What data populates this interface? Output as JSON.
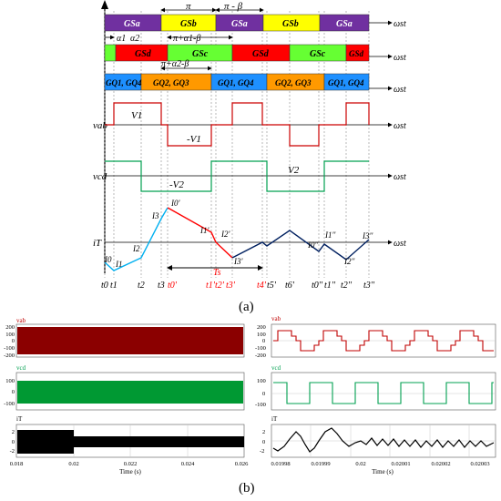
{
  "figure": {
    "panel_a_label": "(a)",
    "panel_b_label": "(b)",
    "colors": {
      "purple": "#7030a0",
      "yellow": "#ffff00",
      "red": "#ff0000",
      "green": "#66ff33",
      "blue": "#1e90ff",
      "orange": "#ff9900",
      "vab_trace": "#c00000",
      "vcd_trace": "#00a050",
      "iT_blue": "#00b0f0",
      "iT_red": "#ff0000",
      "iT_navy": "#002060"
    }
  },
  "timing_diagram": {
    "axis_label": "ωst",
    "row1": [
      {
        "label": "GSa",
        "color": "#7030a0"
      },
      {
        "label": "GSb",
        "color": "#ffff00"
      },
      {
        "label": "GSa",
        "color": "#7030a0"
      },
      {
        "label": "GSb",
        "color": "#ffff00"
      },
      {
        "label": "GSa",
        "color": "#7030a0"
      }
    ],
    "row2": [
      {
        "label": "GSd",
        "color": "#ff0000"
      },
      {
        "label": "GSc",
        "color": "#66ff33"
      },
      {
        "label": "GSd",
        "color": "#ff0000"
      },
      {
        "label": "GSc",
        "color": "#66ff33"
      },
      {
        "label": "GSd",
        "color": "#ff0000"
      }
    ],
    "row3": [
      {
        "label": "GQ1, GQ4",
        "color": "#1e90ff"
      },
      {
        "label": "GQ2, GQ3",
        "color": "#ff9900"
      },
      {
        "label": "GQ1, GQ4",
        "color": "#1e90ff"
      },
      {
        "label": "GQ2, GQ3",
        "color": "#ff9900"
      },
      {
        "label": "GQ1, GQ4",
        "color": "#1e90ff"
      }
    ],
    "annotations": {
      "pi": "π",
      "pi_minus_beta": "π - β",
      "alpha1": "α1",
      "alpha2": "α2",
      "pi_plus_a1_minus_beta": "π+α1-β",
      "pi_plus_a2_minus_beta": "π+α2-β"
    },
    "vab_label": "vab",
    "V1": "V1",
    "neg_V1": "-V1",
    "vcd_label": "vcd",
    "V2": "V2",
    "neg_V2": "-V2",
    "iT_label": "iT",
    "Ts": "Ts",
    "current_points": [
      "I0",
      "I1",
      "I2",
      "I3",
      "I0'",
      "I1'",
      "I2'",
      "I3'",
      "I0''",
      "I1''",
      "I2''",
      "I3''"
    ],
    "t_labels": [
      "t0",
      "t1",
      "t2",
      "t3",
      "t0'",
      "t1'",
      "t2'",
      "t3'",
      "t4'",
      "t5'",
      "t6'",
      "t0''",
      "t1''",
      "t2''",
      "t3''"
    ]
  },
  "plots": {
    "left": {
      "vab": {
        "title": "vab",
        "yticks": [
          "200",
          "100",
          "0",
          "-100",
          "-200"
        ]
      },
      "vcd": {
        "title": "vcd",
        "yticks": [
          "100",
          "0",
          "-100"
        ]
      },
      "iT": {
        "title": "iT",
        "yticks": [
          "2",
          "0",
          "-2"
        ]
      },
      "xticks": [
        "0.018",
        "0.02",
        "0.022",
        "0.024",
        "0.026"
      ],
      "xlabel": "Time (s)"
    },
    "right": {
      "vab": {
        "title": "vab",
        "yticks": [
          "200",
          "100",
          "0",
          "-100",
          "-200"
        ]
      },
      "vcd": {
        "title": "vcd",
        "yticks": [
          "100",
          "0",
          "-100"
        ]
      },
      "iT": {
        "title": "iT",
        "yticks": [
          "2",
          "0",
          "-2"
        ]
      },
      "xticks": [
        "0.01998",
        "0.01999",
        "0.02",
        "0.02001",
        "0.02002",
        "0.02003"
      ],
      "xlabel": "Time (s)"
    }
  }
}
